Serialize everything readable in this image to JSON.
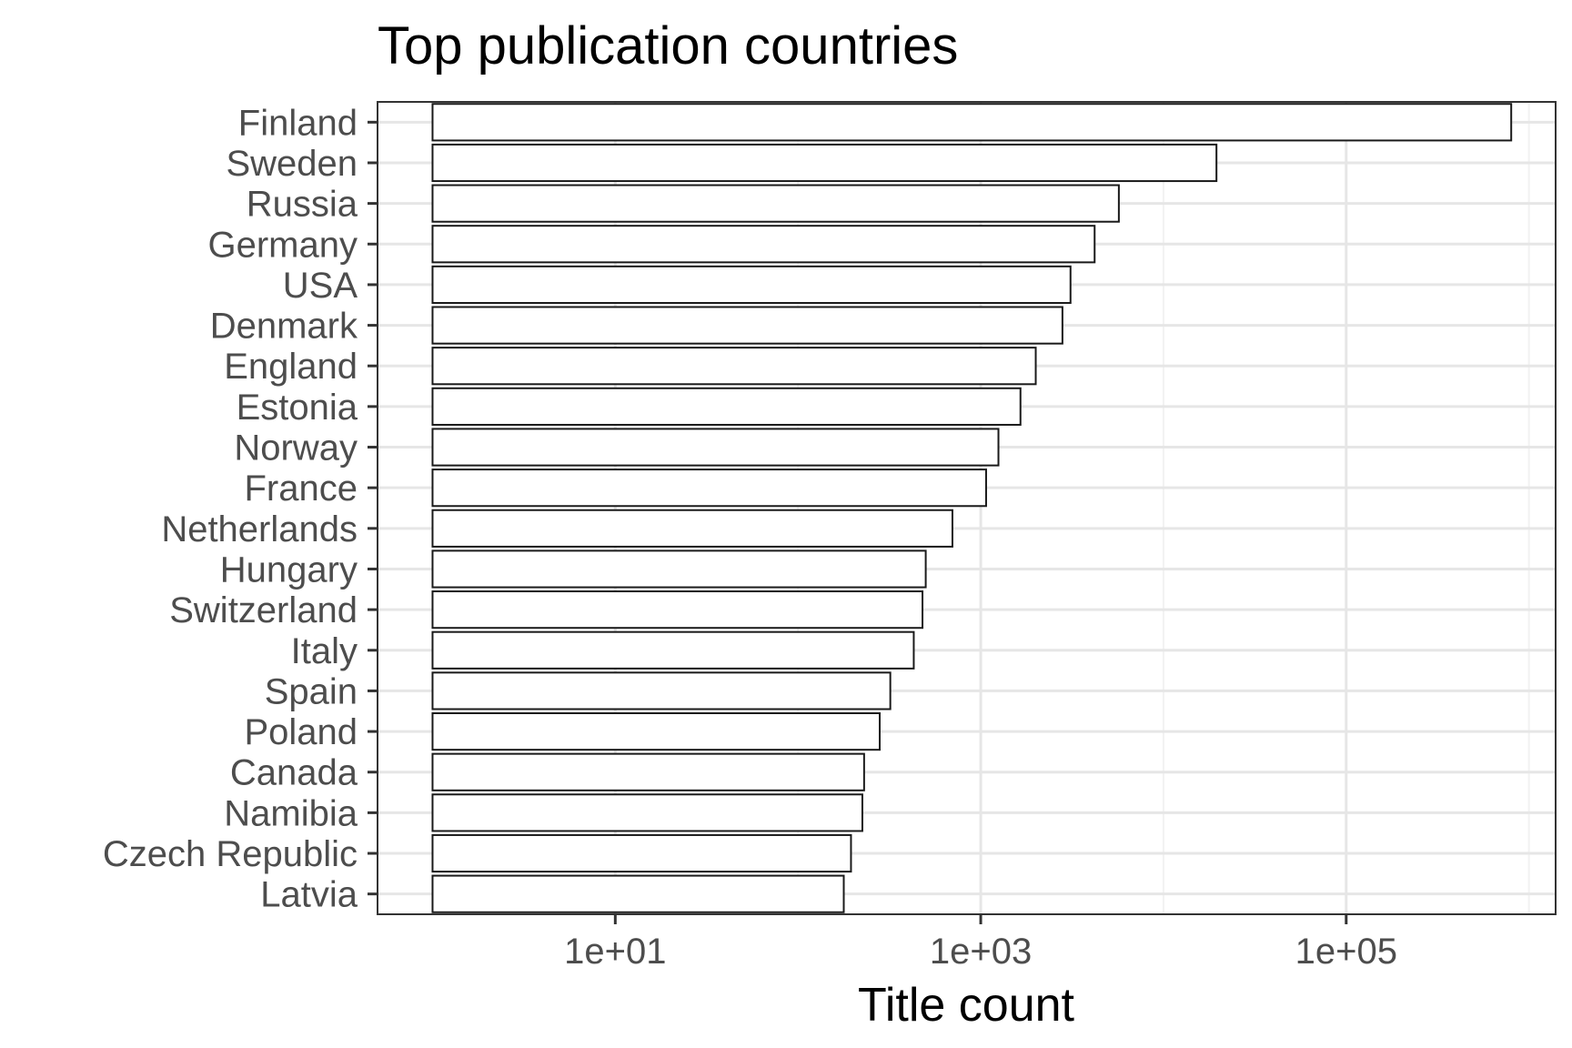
{
  "chart_data": {
    "type": "bar",
    "orientation": "horizontal",
    "title": "Top publication countries",
    "xlabel": "Title count",
    "ylabel": "",
    "x_scale": "log10",
    "xlim": [
      0.5,
      1400000
    ],
    "x_ticks": [
      10,
      1000,
      100000
    ],
    "x_tick_labels": [
      "1e+01",
      "1e+03",
      "1e+05"
    ],
    "bar_baseline": 1,
    "categories": [
      "Finland",
      "Sweden",
      "Russia",
      "Germany",
      "USA",
      "Denmark",
      "England",
      "Estonia",
      "Norway",
      "France",
      "Netherlands",
      "Hungary",
      "Switzerland",
      "Italy",
      "Spain",
      "Poland",
      "Canada",
      "Namibia",
      "Czech Republic",
      "Latvia"
    ],
    "values": [
      800000,
      19500,
      5700,
      4200,
      3100,
      2800,
      2000,
      1650,
      1250,
      1070,
      700,
      500,
      480,
      430,
      320,
      280,
      230,
      225,
      195,
      178
    ],
    "grid": true,
    "legend": "none",
    "colors": {
      "bar_fill": "#ffffff",
      "bar_stroke": "#1a1a1a",
      "grid_major": "#e6e6e6",
      "grid_minor": "#f2f2f2",
      "panel_border": "#333333",
      "tick_text": "#4d4d4d",
      "title_text": "#000000"
    }
  }
}
